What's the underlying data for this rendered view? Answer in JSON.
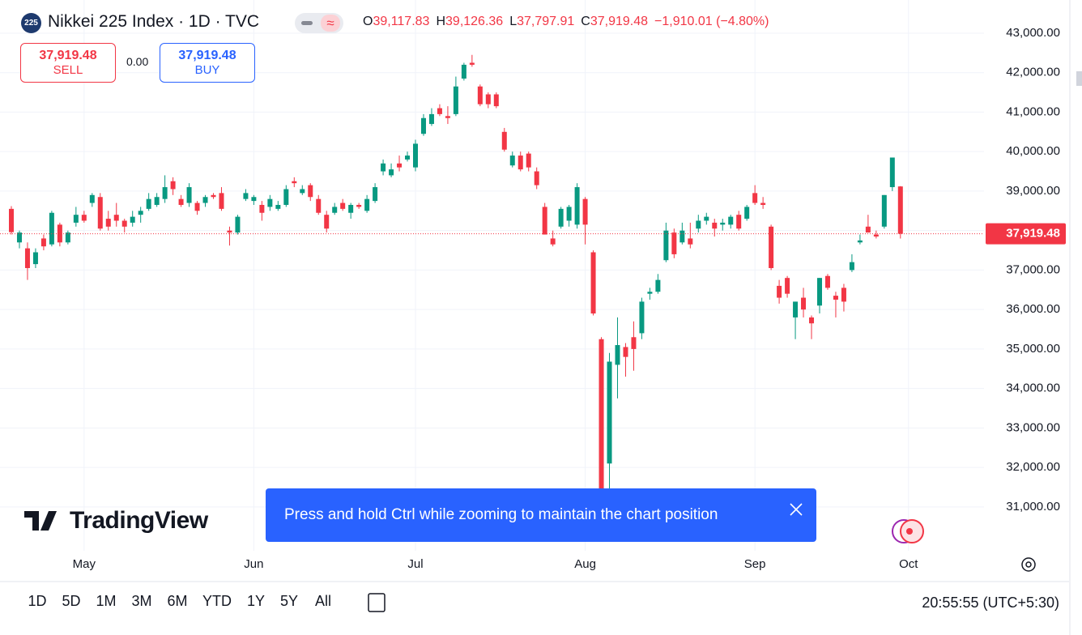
{
  "header": {
    "badge": "225",
    "title": "Nikkei 225 Index · 1D · TVC",
    "ohlc": [
      {
        "label": "O",
        "value": "39,117.83"
      },
      {
        "label": "H",
        "value": "39,126.36"
      },
      {
        "label": "L",
        "value": "37,797.91"
      },
      {
        "label": "C",
        "value": "37,919.48"
      }
    ],
    "change": "−1,910.01 (−4.80%)"
  },
  "trade": {
    "sell_price": "37,919.48",
    "sell": "SELL",
    "spread": "0.00",
    "buy_price": "37,919.48",
    "buy": "BUY"
  },
  "logo": "TradingView",
  "toast": "Press and hold Ctrl while zooming to maintain the chart position",
  "toolbar": {
    "ranges": [
      "1D",
      "5D",
      "1M",
      "3M",
      "6M",
      "YTD",
      "1Y",
      "5Y",
      "All"
    ],
    "time": "20:55:55 (UTC+5:30)"
  },
  "chart_data": {
    "type": "candlestick",
    "up_color": "#089981",
    "down_color": "#f23645",
    "grid": true,
    "categories": [
      null,
      null,
      null,
      null,
      null,
      null,
      null,
      null,
      null,
      "May",
      null,
      null,
      null,
      null,
      null,
      null,
      null,
      null,
      null,
      null,
      null,
      null,
      null,
      null,
      null,
      null,
      null,
      null,
      null,
      null,
      "Jun",
      null,
      null,
      null,
      null,
      null,
      null,
      null,
      null,
      null,
      null,
      null,
      null,
      null,
      null,
      null,
      null,
      null,
      null,
      null,
      "Jul",
      null,
      null,
      null,
      null,
      null,
      null,
      null,
      null,
      null,
      null,
      null,
      null,
      null,
      null,
      null,
      null,
      null,
      null,
      null,
      null,
      "Aug",
      null,
      null,
      null,
      null,
      null,
      null,
      null,
      null,
      null,
      null,
      null,
      null,
      null,
      null,
      null,
      null,
      null,
      null,
      null,
      null,
      "Sep",
      null,
      null,
      null,
      null,
      null,
      null,
      null,
      null,
      null,
      null,
      null,
      null,
      null,
      null,
      null,
      null,
      null,
      null,
      "Oct"
    ],
    "open": [
      38550,
      37700,
      37550,
      37150,
      37800,
      37650,
      38150,
      37700,
      38200,
      38400,
      38700,
      38850,
      38300,
      38400,
      38250,
      38200,
      38400,
      38550,
      38650,
      38800,
      39250,
      38800,
      38700,
      38700,
      38700,
      38900,
      38950,
      38000,
      37950,
      38800,
      38750,
      38650,
      38600,
      38550,
      38650,
      39250,
      38950,
      39150,
      38800,
      38400,
      38450,
      38700,
      38450,
      38650,
      38500,
      38750,
      39500,
      39400,
      39700,
      39800,
      39600,
      40450,
      40700,
      41100,
      40900,
      40950,
      41850,
      42250,
      41650,
      41450,
      41450,
      40500,
      39650,
      39900,
      39950,
      39500,
      38600,
      37800,
      38100,
      38250,
      38150,
      38800,
      37450,
      35250,
      32100,
      34600,
      35050,
      35300,
      35400,
      36400,
      36450,
      37250,
      37950,
      37700,
      37800,
      38050,
      38250,
      38200,
      38150,
      38150,
      38400,
      38300,
      38950,
      38700,
      38100,
      36600,
      36800,
      35800,
      36300,
      35800,
      36100,
      36850,
      36350,
      36550,
      37000,
      37700,
      38100,
      37900,
      38100,
      39100,
      39117.83,
      null
    ],
    "high": [
      38620,
      38000,
      37700,
      37550,
      37900,
      38500,
      38200,
      38000,
      38600,
      38500,
      38950,
      38950,
      38500,
      38700,
      38300,
      38500,
      38600,
      38950,
      38950,
      39400,
      39350,
      38900,
      39200,
      38750,
      38900,
      38950,
      39100,
      38100,
      38400,
      39050,
      38900,
      38750,
      38900,
      38750,
      39150,
      39350,
      39150,
      39200,
      38900,
      38500,
      38700,
      38800,
      38700,
      38700,
      38900,
      39200,
      39800,
      39700,
      39900,
      40000,
      40300,
      40950,
      41100,
      41200,
      41150,
      41900,
      42250,
      42450,
      41700,
      41500,
      41500,
      40600,
      40000,
      40000,
      40000,
      39600,
      38700,
      38000,
      38600,
      38650,
      39200,
      38850,
      37500,
      35300,
      34900,
      35800,
      35150,
      35700,
      36300,
      36550,
      36900,
      38200,
      38050,
      38200,
      38200,
      38400,
      38450,
      38300,
      38300,
      38400,
      38500,
      38650,
      39150,
      38850,
      38150,
      36750,
      36850,
      36200,
      36550,
      35850,
      36800,
      36900,
      36450,
      36650,
      37400,
      37900,
      38400,
      38000,
      38900,
      39850,
      39126.36,
      null
    ],
    "low": [
      37900,
      37550,
      36750,
      37050,
      37500,
      37600,
      37600,
      37650,
      38100,
      38200,
      38600,
      38000,
      38000,
      38100,
      37950,
      38100,
      38200,
      38500,
      38600,
      38700,
      38900,
      38600,
      38600,
      38400,
      38600,
      38800,
      38500,
      37620,
      37900,
      38750,
      38650,
      38250,
      38500,
      38500,
      38600,
      39100,
      38900,
      38750,
      38400,
      37950,
      38400,
      38500,
      38300,
      38550,
      38450,
      38700,
      39400,
      39350,
      39500,
      39750,
      39500,
      40400,
      40650,
      40900,
      40700,
      40900,
      41800,
      42150,
      41150,
      41100,
      41100,
      40000,
      39600,
      39500,
      39500,
      39050,
      37900,
      37600,
      38050,
      38100,
      38050,
      37650,
      35850,
      31150,
      31450,
      33750,
      34300,
      34450,
      35250,
      36250,
      36400,
      37200,
      37300,
      37650,
      37550,
      37950,
      38150,
      37850,
      38000,
      38050,
      38000,
      38250,
      38650,
      38550,
      37000,
      36150,
      36300,
      35250,
      35800,
      35250,
      35900,
      36500,
      35800,
      35950,
      36950,
      37650,
      37950,
      37800,
      38050,
      39000,
      37797.91,
      null
    ],
    "close": [
      37960,
      37950,
      37050,
      37450,
      37600,
      38450,
      37700,
      37950,
      38400,
      38250,
      38900,
      38050,
      38100,
      38250,
      38100,
      38350,
      38500,
      38800,
      38850,
      39100,
      39050,
      38650,
      39100,
      38500,
      38850,
      38850,
      38550,
      37950,
      38350,
      38950,
      38850,
      38450,
      38800,
      38650,
      39050,
      39200,
      39050,
      38850,
      38450,
      38050,
      38600,
      38550,
      38650,
      38600,
      38800,
      39100,
      39700,
      39550,
      39600,
      39900,
      40200,
      40850,
      40950,
      40950,
      40850,
      41650,
      42200,
      42200,
      41200,
      41200,
      41150,
      40050,
      39900,
      39550,
      39600,
      39150,
      37900,
      37650,
      38550,
      38600,
      39100,
      38150,
      35900,
      31450,
      34680,
      35100,
      34800,
      35000,
      36200,
      36450,
      36750,
      38000,
      37400,
      38000,
      37650,
      38250,
      38350,
      38050,
      38200,
      38350,
      38050,
      38600,
      38700,
      38650,
      37050,
      36300,
      36400,
      36200,
      36000,
      35650,
      36800,
      36550,
      36250,
      36200,
      37200,
      37750,
      37950,
      37850,
      38900,
      39850,
      37919.48,
      null
    ],
    "ylim": [
      29890,
      43840
    ],
    "yticks": [
      {
        "value": 31000,
        "label": "31,000.00"
      },
      {
        "value": 32000,
        "label": "32,000.00"
      },
      {
        "value": 33000,
        "label": "33,000.00"
      },
      {
        "value": 34000,
        "label": "34,000.00"
      },
      {
        "value": 35000,
        "label": "35,000.00"
      },
      {
        "value": 36000,
        "label": "36,000.00"
      },
      {
        "value": 37000,
        "label": "37,000.00"
      },
      {
        "value": 38000,
        "label": "38,000.00"
      },
      {
        "value": 39000,
        "label": "39,000.00"
      },
      {
        "value": 40000,
        "label": "40,000.00"
      },
      {
        "value": 41000,
        "label": "41,000.00"
      },
      {
        "value": 42000,
        "label": "42,000.00"
      },
      {
        "value": 43000,
        "label": "43,000.00"
      }
    ],
    "price_line": {
      "value": 37919.48,
      "label": "37,919.48"
    }
  }
}
